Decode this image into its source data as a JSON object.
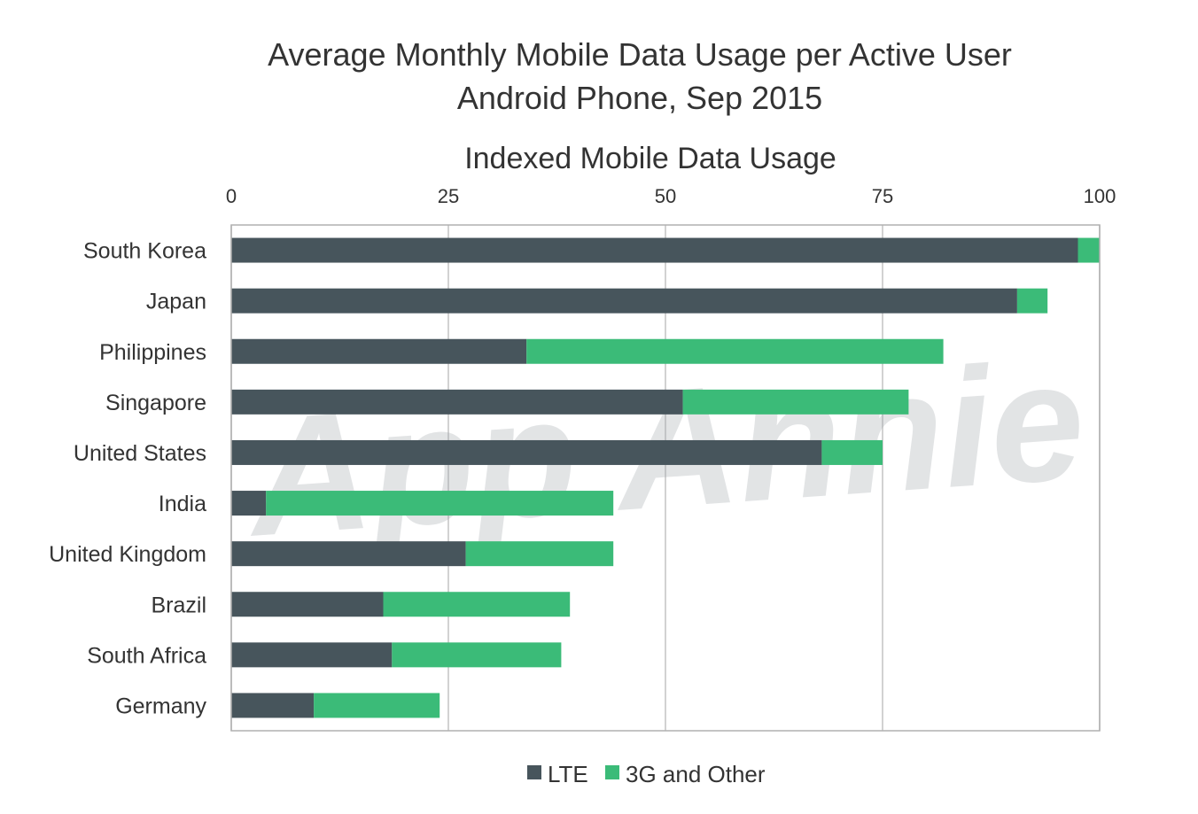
{
  "chart_data": {
    "type": "bar",
    "orientation": "horizontal",
    "stacked": true,
    "title": "Average Monthly Mobile Data Usage per Active User",
    "subtitle": "Android Phone, Sep 2015",
    "axis_title": "Indexed Mobile Data Usage",
    "xlim": [
      0,
      100
    ],
    "xticks": [
      "0",
      "25",
      "50",
      "75",
      "100"
    ],
    "grid": true,
    "legend_position": "bottom",
    "watermark": "App Annie",
    "categories": [
      "South Korea",
      "Japan",
      "Philippines",
      "Singapore",
      "United States",
      "India",
      "United Kingdom",
      "Brazil",
      "South Africa",
      "Germany"
    ],
    "series": [
      {
        "name": "LTE",
        "color": "#47555c",
        "values": [
          97.5,
          90.5,
          34,
          52,
          68,
          4,
          27,
          17.5,
          18.5,
          9.5
        ]
      },
      {
        "name": "3G and Other",
        "color": "#3bbb78",
        "values": [
          2.5,
          3.5,
          48,
          26,
          7,
          40,
          17,
          21.5,
          19.5,
          14.5
        ]
      }
    ]
  }
}
